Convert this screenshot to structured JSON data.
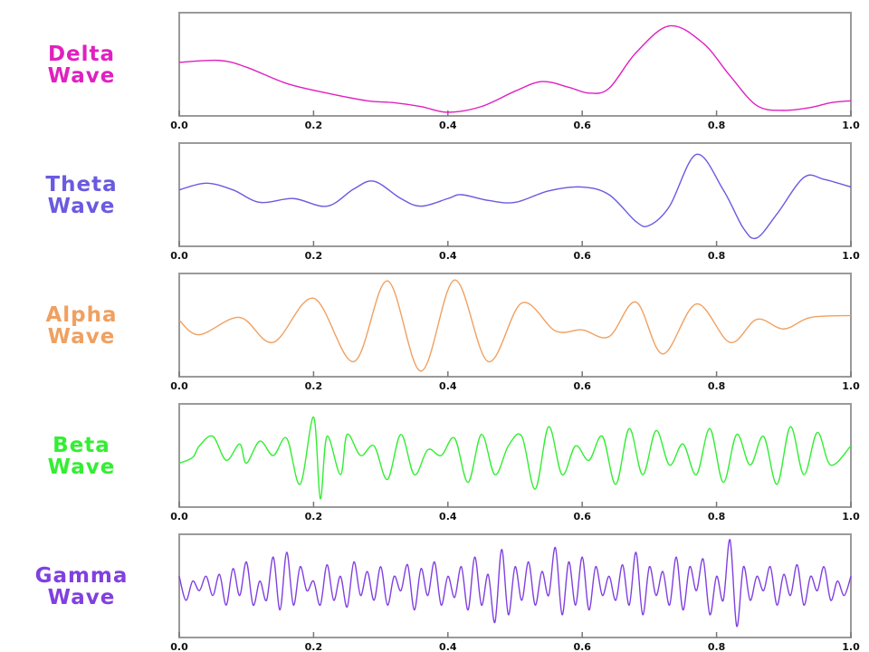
{
  "chart_data": [
    {
      "type": "line",
      "title": "Delta\nWave",
      "color": "#e020c0",
      "xlim": [
        0,
        1
      ],
      "ylim": [
        0,
        1
      ],
      "tick_labels": [
        "0.0",
        "0.2",
        "0.4",
        "0.6",
        "0.8",
        "1.0"
      ],
      "series": [
        {
          "x": [
            0,
            0.06,
            0.1,
            0.16,
            0.22,
            0.28,
            0.32,
            0.36,
            0.4,
            0.45,
            0.5,
            0.54,
            0.58,
            0.61,
            0.64,
            0.68,
            0.73,
            0.78,
            0.82,
            0.86,
            0.9,
            0.94,
            0.97,
            1.0
          ],
          "values": [
            0.52,
            0.54,
            0.47,
            0.3,
            0.2,
            0.12,
            0.1,
            0.06,
            0.0,
            0.06,
            0.22,
            0.32,
            0.26,
            0.2,
            0.25,
            0.62,
            0.9,
            0.72,
            0.38,
            0.07,
            0.02,
            0.05,
            0.1,
            0.12
          ]
        }
      ]
    },
    {
      "type": "line",
      "title": "Theta\nWave",
      "color": "#6a5ae0",
      "xlim": [
        0,
        1
      ],
      "ylim": [
        0,
        1
      ],
      "tick_labels": [
        "0.0",
        "0.2",
        "0.4",
        "0.6",
        "0.8",
        "1.0"
      ],
      "series": [
        {
          "x": [
            0,
            0.04,
            0.08,
            0.12,
            0.17,
            0.22,
            0.26,
            0.29,
            0.33,
            0.36,
            0.4,
            0.42,
            0.46,
            0.5,
            0.55,
            0.6,
            0.64,
            0.68,
            0.7,
            0.73,
            0.77,
            0.81,
            0.84,
            0.86,
            0.89,
            0.93,
            0.96,
            1.0
          ],
          "values": [
            0.55,
            0.62,
            0.55,
            0.42,
            0.46,
            0.38,
            0.56,
            0.64,
            0.46,
            0.38,
            0.46,
            0.5,
            0.44,
            0.42,
            0.54,
            0.58,
            0.5,
            0.22,
            0.18,
            0.38,
            0.92,
            0.55,
            0.15,
            0.05,
            0.3,
            0.68,
            0.66,
            0.58
          ]
        }
      ]
    },
    {
      "type": "line",
      "title": "Alpha\nWave",
      "color": "#f0a060",
      "xlim": [
        0,
        1
      ],
      "ylim": [
        0,
        1
      ],
      "tick_labels": [
        "0.0",
        "0.2",
        "0.4",
        "0.6",
        "0.8",
        "1.0"
      ],
      "series": [
        {
          "x": [
            0,
            0.03,
            0.09,
            0.14,
            0.2,
            0.26,
            0.31,
            0.36,
            0.41,
            0.46,
            0.51,
            0.56,
            0.6,
            0.64,
            0.68,
            0.72,
            0.77,
            0.82,
            0.86,
            0.9,
            0.94,
            1.0
          ],
          "values": [
            0.55,
            0.4,
            0.58,
            0.32,
            0.78,
            0.12,
            0.96,
            0.02,
            0.97,
            0.12,
            0.73,
            0.44,
            0.45,
            0.38,
            0.74,
            0.2,
            0.72,
            0.32,
            0.56,
            0.46,
            0.58,
            0.6
          ]
        }
      ]
    },
    {
      "type": "line",
      "title": "Beta\nWave",
      "color": "#33ee33",
      "xlim": [
        0,
        1
      ],
      "ylim": [
        0,
        1
      ],
      "tick_labels": [
        "0.0",
        "0.2",
        "0.4",
        "0.6",
        "0.8",
        "1.0"
      ],
      "series": [
        {
          "x": [
            0,
            0.02,
            0.03,
            0.05,
            0.07,
            0.09,
            0.1,
            0.12,
            0.14,
            0.16,
            0.18,
            0.2,
            0.21,
            0.22,
            0.24,
            0.25,
            0.27,
            0.29,
            0.31,
            0.33,
            0.35,
            0.37,
            0.39,
            0.41,
            0.43,
            0.45,
            0.47,
            0.49,
            0.51,
            0.53,
            0.55,
            0.57,
            0.59,
            0.61,
            0.63,
            0.65,
            0.67,
            0.69,
            0.71,
            0.73,
            0.75,
            0.77,
            0.79,
            0.81,
            0.83,
            0.85,
            0.87,
            0.89,
            0.91,
            0.93,
            0.95,
            0.97,
            1.0
          ],
          "values": [
            0.42,
            0.48,
            0.6,
            0.7,
            0.45,
            0.62,
            0.42,
            0.65,
            0.5,
            0.68,
            0.2,
            0.9,
            0.05,
            0.7,
            0.3,
            0.72,
            0.5,
            0.6,
            0.25,
            0.72,
            0.3,
            0.56,
            0.5,
            0.68,
            0.22,
            0.72,
            0.3,
            0.6,
            0.7,
            0.15,
            0.8,
            0.3,
            0.6,
            0.45,
            0.7,
            0.2,
            0.78,
            0.3,
            0.76,
            0.4,
            0.62,
            0.3,
            0.78,
            0.22,
            0.72,
            0.4,
            0.7,
            0.2,
            0.8,
            0.3,
            0.74,
            0.4,
            0.6
          ]
        }
      ]
    },
    {
      "type": "line",
      "title": "Gamma\nWave",
      "color": "#8040e0",
      "xlim": [
        0,
        1
      ],
      "ylim": [
        0,
        1
      ],
      "tick_labels": [
        "0.0",
        "0.2",
        "0.4",
        "0.6",
        "0.8",
        "1.0"
      ],
      "series": [
        {
          "x": [
            0,
            0.01,
            0.02,
            0.03,
            0.04,
            0.05,
            0.06,
            0.07,
            0.08,
            0.09,
            0.1,
            0.11,
            0.12,
            0.13,
            0.14,
            0.15,
            0.16,
            0.17,
            0.18,
            0.19,
            0.2,
            0.21,
            0.22,
            0.23,
            0.24,
            0.25,
            0.26,
            0.27,
            0.28,
            0.29,
            0.3,
            0.31,
            0.32,
            0.33,
            0.34,
            0.35,
            0.36,
            0.37,
            0.38,
            0.39,
            0.4,
            0.41,
            0.42,
            0.43,
            0.44,
            0.45,
            0.46,
            0.47,
            0.48,
            0.49,
            0.5,
            0.51,
            0.52,
            0.53,
            0.54,
            0.55,
            0.56,
            0.57,
            0.58,
            0.59,
            0.6,
            0.61,
            0.62,
            0.63,
            0.64,
            0.65,
            0.66,
            0.67,
            0.68,
            0.69,
            0.7,
            0.71,
            0.72,
            0.73,
            0.74,
            0.75,
            0.76,
            0.77,
            0.78,
            0.79,
            0.8,
            0.81,
            0.82,
            0.83,
            0.84,
            0.85,
            0.86,
            0.87,
            0.88,
            0.89,
            0.9,
            0.91,
            0.92,
            0.93,
            0.94,
            0.95,
            0.96,
            0.97,
            0.98,
            0.99,
            1.0
          ],
          "values": [
            0.6,
            0.35,
            0.55,
            0.45,
            0.6,
            0.4,
            0.62,
            0.3,
            0.68,
            0.4,
            0.75,
            0.3,
            0.55,
            0.35,
            0.8,
            0.25,
            0.85,
            0.3,
            0.7,
            0.45,
            0.55,
            0.3,
            0.72,
            0.35,
            0.6,
            0.28,
            0.75,
            0.4,
            0.65,
            0.35,
            0.7,
            0.3,
            0.6,
            0.45,
            0.72,
            0.25,
            0.68,
            0.4,
            0.75,
            0.3,
            0.6,
            0.38,
            0.7,
            0.25,
            0.8,
            0.3,
            0.62,
            0.12,
            0.88,
            0.2,
            0.7,
            0.35,
            0.75,
            0.3,
            0.65,
            0.4,
            0.9,
            0.2,
            0.75,
            0.3,
            0.8,
            0.25,
            0.7,
            0.4,
            0.6,
            0.35,
            0.72,
            0.3,
            0.85,
            0.2,
            0.7,
            0.4,
            0.65,
            0.3,
            0.8,
            0.25,
            0.7,
            0.45,
            0.78,
            0.2,
            0.6,
            0.35,
            0.98,
            0.08,
            0.7,
            0.35,
            0.6,
            0.45,
            0.7,
            0.3,
            0.62,
            0.4,
            0.72,
            0.3,
            0.6,
            0.45,
            0.7,
            0.35,
            0.55,
            0.4,
            0.6
          ]
        }
      ]
    }
  ]
}
